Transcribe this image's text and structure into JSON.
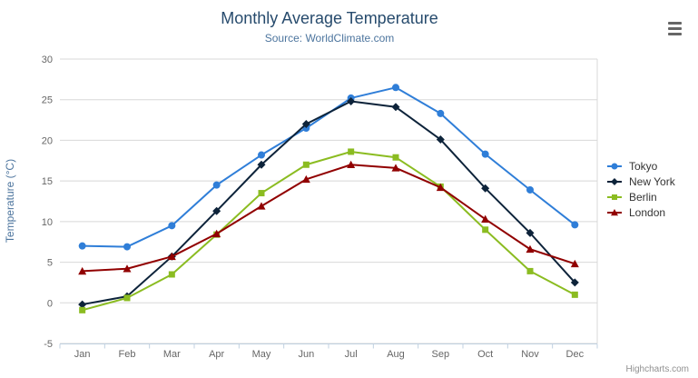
{
  "credits": "Highcharts.com",
  "icons": {
    "menu": "hamburger-icon"
  },
  "chart_data": {
    "type": "line",
    "title": "Monthly Average Temperature",
    "subtitle": "Source: WorldClimate.com",
    "categories": [
      "Jan",
      "Feb",
      "Mar",
      "Apr",
      "May",
      "Jun",
      "Jul",
      "Aug",
      "Sep",
      "Oct",
      "Nov",
      "Dec"
    ],
    "xlabel": "",
    "ylabel": "Temperature (°C)",
    "ylim": [
      -5,
      30
    ],
    "ytick_interval": 5,
    "grid": true,
    "legend_position": "right",
    "series": [
      {
        "name": "Tokyo",
        "color": "#2f7ed8",
        "marker": "circle",
        "values": [
          7.0,
          6.9,
          9.5,
          14.5,
          18.2,
          21.5,
          25.2,
          26.5,
          23.3,
          18.3,
          13.9,
          9.6
        ]
      },
      {
        "name": "New York",
        "color": "#0d233a",
        "marker": "diamond",
        "values": [
          -0.2,
          0.8,
          5.7,
          11.3,
          17.0,
          22.0,
          24.8,
          24.1,
          20.1,
          14.1,
          8.6,
          2.5
        ]
      },
      {
        "name": "Berlin",
        "color": "#8bbc21",
        "marker": "square",
        "values": [
          -0.9,
          0.6,
          3.5,
          8.4,
          13.5,
          17.0,
          18.6,
          17.9,
          14.3,
          9.0,
          3.9,
          1.0
        ]
      },
      {
        "name": "London",
        "color": "#910000",
        "marker": "triangle",
        "values": [
          3.9,
          4.2,
          5.7,
          8.5,
          11.9,
          15.2,
          17.0,
          16.6,
          14.2,
          10.3,
          6.6,
          4.8
        ]
      }
    ]
  }
}
